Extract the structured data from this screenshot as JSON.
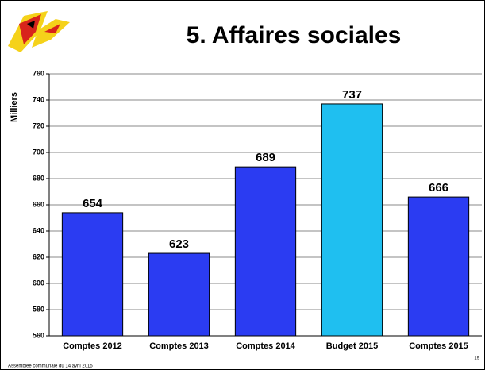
{
  "chart_data": {
    "type": "bar",
    "title": "5. Affaires sociales",
    "y_label": "Milliers",
    "categories": [
      "Comptes 2012",
      "Comptes 2013",
      "Comptes 2014",
      "Budget 2015",
      "Comptes 2015"
    ],
    "values": [
      654,
      623,
      689,
      737,
      666
    ],
    "colors": [
      "#2b3cf2",
      "#2b3cf2",
      "#2b3cf2",
      "#1fbff0",
      "#2b3cf2"
    ],
    "ylim": [
      560,
      760
    ],
    "yticks": [
      560,
      580,
      600,
      620,
      640,
      660,
      680,
      700,
      720,
      740,
      760
    ],
    "grid": true
  },
  "footer": "Assemblée communale du 14 avril 2015",
  "page_number": "19"
}
